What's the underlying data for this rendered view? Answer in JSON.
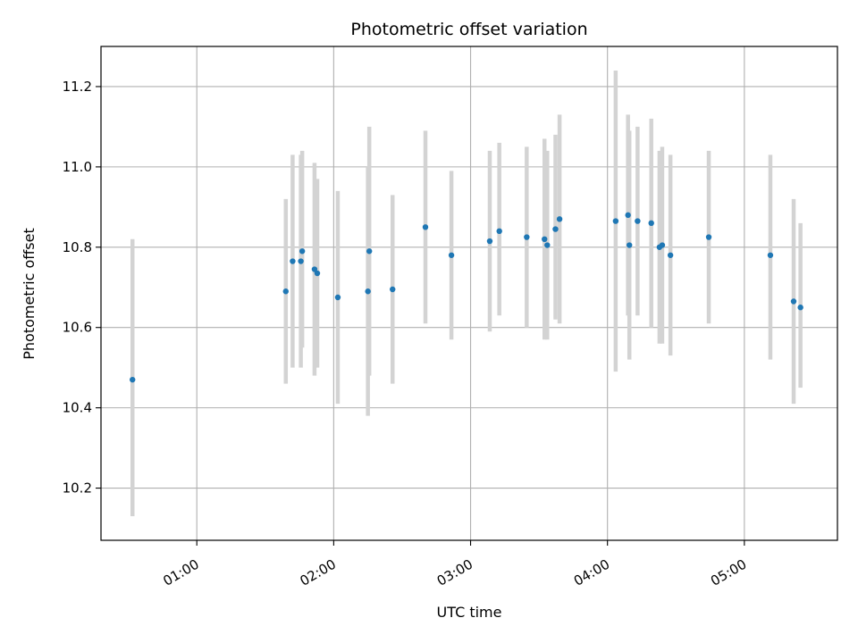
{
  "chart_data": {
    "type": "scatter",
    "title": "Photometric offset variation",
    "xlabel": "UTC time",
    "ylabel": "Photometric offset",
    "grid": true,
    "xlim": [
      0.3,
      5.68
    ],
    "ylim": [
      10.07,
      11.3
    ],
    "xticks": [
      {
        "value": 1,
        "label": "01:00"
      },
      {
        "value": 2,
        "label": "02:00"
      },
      {
        "value": 3,
        "label": "03:00"
      },
      {
        "value": 4,
        "label": "04:00"
      },
      {
        "value": 5,
        "label": "05:00"
      }
    ],
    "yticks": [
      {
        "value": 10.2,
        "label": "10.2"
      },
      {
        "value": 10.4,
        "label": "10.4"
      },
      {
        "value": 10.6,
        "label": "10.6"
      },
      {
        "value": 10.8,
        "label": "10.8"
      },
      {
        "value": 11.0,
        "label": "11.0"
      },
      {
        "value": 11.2,
        "label": "11.2"
      }
    ],
    "point_color": "#1f77b4",
    "errorbar_color": "#d3d3d3",
    "points": [
      {
        "x": 0.53,
        "y": 10.47,
        "lo": 10.13,
        "hi": 10.82
      },
      {
        "x": 1.65,
        "y": 10.69,
        "lo": 10.46,
        "hi": 10.92
      },
      {
        "x": 1.7,
        "y": 10.765,
        "lo": 10.5,
        "hi": 11.03
      },
      {
        "x": 1.76,
        "y": 10.765,
        "lo": 10.5,
        "hi": 11.03
      },
      {
        "x": 1.77,
        "y": 10.79,
        "lo": 10.55,
        "hi": 11.04
      },
      {
        "x": 1.86,
        "y": 10.745,
        "lo": 10.48,
        "hi": 11.01
      },
      {
        "x": 1.88,
        "y": 10.735,
        "lo": 10.5,
        "hi": 10.97
      },
      {
        "x": 2.03,
        "y": 10.675,
        "lo": 10.41,
        "hi": 10.94
      },
      {
        "x": 2.25,
        "y": 10.69,
        "lo": 10.38,
        "hi": 11.0
      },
      {
        "x": 2.26,
        "y": 10.79,
        "lo": 10.48,
        "hi": 11.1
      },
      {
        "x": 2.43,
        "y": 10.695,
        "lo": 10.46,
        "hi": 10.93
      },
      {
        "x": 2.67,
        "y": 10.85,
        "lo": 10.61,
        "hi": 11.09
      },
      {
        "x": 2.86,
        "y": 10.78,
        "lo": 10.57,
        "hi": 10.99
      },
      {
        "x": 3.14,
        "y": 10.815,
        "lo": 10.59,
        "hi": 11.04
      },
      {
        "x": 3.21,
        "y": 10.84,
        "lo": 10.63,
        "hi": 11.06
      },
      {
        "x": 3.41,
        "y": 10.825,
        "lo": 10.6,
        "hi": 11.05
      },
      {
        "x": 3.54,
        "y": 10.82,
        "lo": 10.57,
        "hi": 11.07
      },
      {
        "x": 3.56,
        "y": 10.805,
        "lo": 10.57,
        "hi": 11.04
      },
      {
        "x": 3.62,
        "y": 10.845,
        "lo": 10.62,
        "hi": 11.08
      },
      {
        "x": 3.65,
        "y": 10.87,
        "lo": 10.61,
        "hi": 11.13
      },
      {
        "x": 4.06,
        "y": 10.865,
        "lo": 10.49,
        "hi": 11.24
      },
      {
        "x": 4.15,
        "y": 10.88,
        "lo": 10.63,
        "hi": 11.13
      },
      {
        "x": 4.16,
        "y": 10.805,
        "lo": 10.52,
        "hi": 11.09
      },
      {
        "x": 4.22,
        "y": 10.865,
        "lo": 10.63,
        "hi": 11.1
      },
      {
        "x": 4.32,
        "y": 10.86,
        "lo": 10.6,
        "hi": 11.12
      },
      {
        "x": 4.38,
        "y": 10.8,
        "lo": 10.56,
        "hi": 11.04
      },
      {
        "x": 4.4,
        "y": 10.805,
        "lo": 10.56,
        "hi": 11.05
      },
      {
        "x": 4.46,
        "y": 10.78,
        "lo": 10.53,
        "hi": 11.03
      },
      {
        "x": 4.74,
        "y": 10.825,
        "lo": 10.61,
        "hi": 11.04
      },
      {
        "x": 5.19,
        "y": 10.78,
        "lo": 10.52,
        "hi": 11.03
      },
      {
        "x": 5.36,
        "y": 10.665,
        "lo": 10.41,
        "hi": 10.92
      },
      {
        "x": 5.41,
        "y": 10.65,
        "lo": 10.45,
        "hi": 10.86
      }
    ]
  }
}
